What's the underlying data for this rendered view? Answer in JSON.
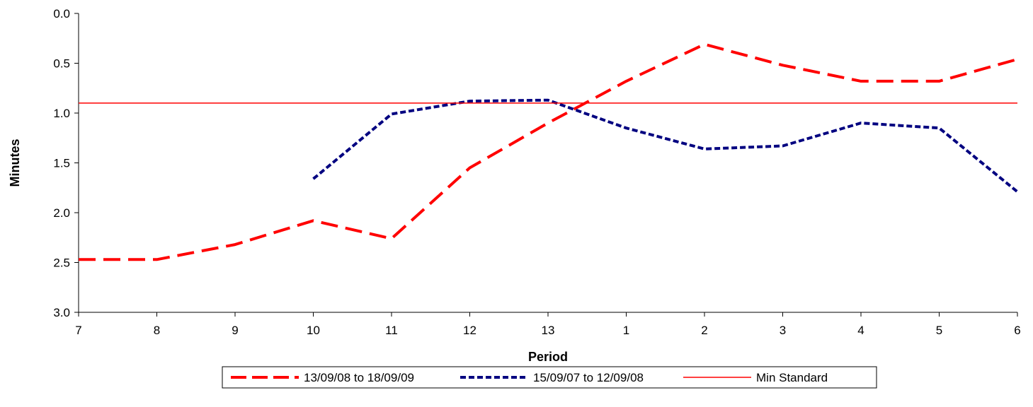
{
  "chart_data": {
    "type": "line",
    "title": "",
    "xlabel": "Period",
    "ylabel": "Minutes",
    "categories": [
      "7",
      "8",
      "9",
      "10",
      "11",
      "12",
      "13",
      "1",
      "2",
      "3",
      "4",
      "5",
      "6"
    ],
    "y_ticks": [
      "0.0",
      "0.5",
      "1.0",
      "1.5",
      "2.0",
      "2.5",
      "3.0"
    ],
    "ylim": [
      0,
      3
    ],
    "y_reversed": true,
    "grid": false,
    "legend_position": "bottom",
    "series": [
      {
        "name": "13/09/08 to 18/09/09",
        "color": "#ff0000",
        "dash": "long-dash",
        "values": [
          2.47,
          2.47,
          2.32,
          2.08,
          2.26,
          1.55,
          1.1,
          0.68,
          0.31,
          0.52,
          0.68,
          0.68,
          0.46
        ]
      },
      {
        "name": "15/09/07 to 12/09/08",
        "color": "#000080",
        "dash": "short-dash",
        "values": [
          null,
          null,
          null,
          1.66,
          1.01,
          0.88,
          0.87,
          1.15,
          1.36,
          1.33,
          1.1,
          1.15,
          1.79
        ]
      },
      {
        "name": "Min Standard",
        "color": "#ff0000",
        "dash": "solid",
        "values": [
          0.9,
          0.9,
          0.9,
          0.9,
          0.9,
          0.9,
          0.9,
          0.9,
          0.9,
          0.9,
          0.9,
          0.9,
          0.9
        ]
      }
    ]
  }
}
